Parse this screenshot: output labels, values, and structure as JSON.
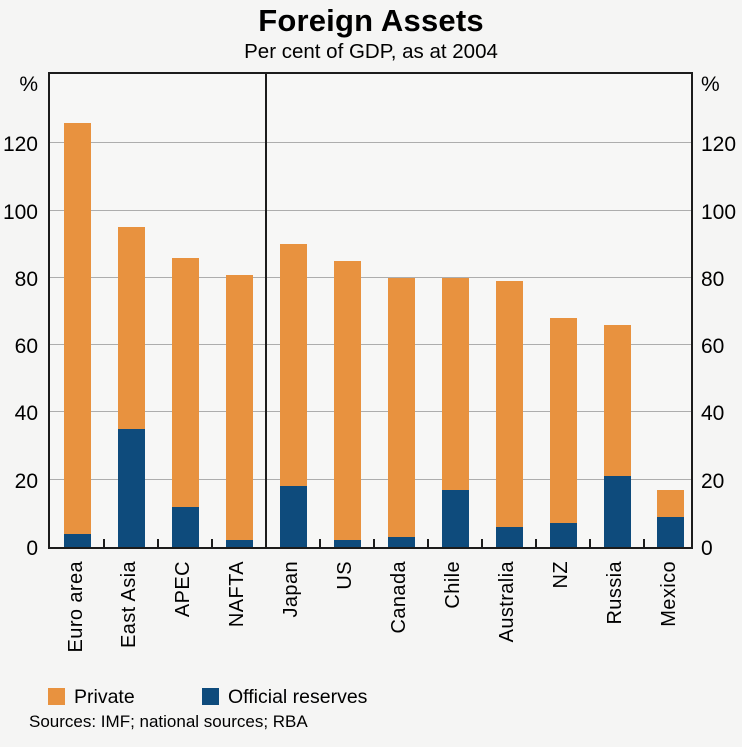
{
  "title": "Foreign Assets",
  "subtitle": "Per cent of GDP, as at 2004",
  "axis": {
    "unit_left": "%",
    "unit_right": "%",
    "ticks": [
      0,
      20,
      40,
      60,
      80,
      100,
      120
    ]
  },
  "legend": [
    {
      "label": "Private",
      "color": "#e8923f"
    },
    {
      "label": "Official reserves",
      "color": "#0e4b7c"
    }
  ],
  "source_note": "Sources: IMF; national sources; RBA",
  "chart_data": {
    "type": "bar",
    "stacked": true,
    "title": "Foreign Assets",
    "subtitle": "Per cent of GDP, as at 2004",
    "ylabel": "%",
    "ylim": [
      0,
      141.8
    ],
    "gridlines": [
      20,
      40,
      60,
      80,
      100,
      120
    ],
    "grid": true,
    "legend_position": "bottom",
    "categories": [
      "Euro area",
      "East Asia",
      "APEC",
      "NAFTA",
      "Japan",
      "US",
      "Canada",
      "Chile",
      "Australia",
      "NZ",
      "Russia",
      "Mexico"
    ],
    "panel_divider_after_index": 3,
    "series": [
      {
        "name": "Official reserves",
        "color": "#0e4b7c",
        "values": [
          4,
          35,
          12,
          2,
          18,
          2,
          3,
          17,
          6,
          7,
          21,
          9
        ]
      },
      {
        "name": "Private",
        "color": "#e8923f",
        "values": [
          122,
          60,
          74,
          79,
          72,
          83,
          77,
          63,
          73,
          61,
          45,
          8
        ]
      }
    ],
    "totals": [
      126,
      95,
      86,
      81,
      90,
      85,
      80,
      80,
      79,
      68,
      66,
      17
    ]
  }
}
